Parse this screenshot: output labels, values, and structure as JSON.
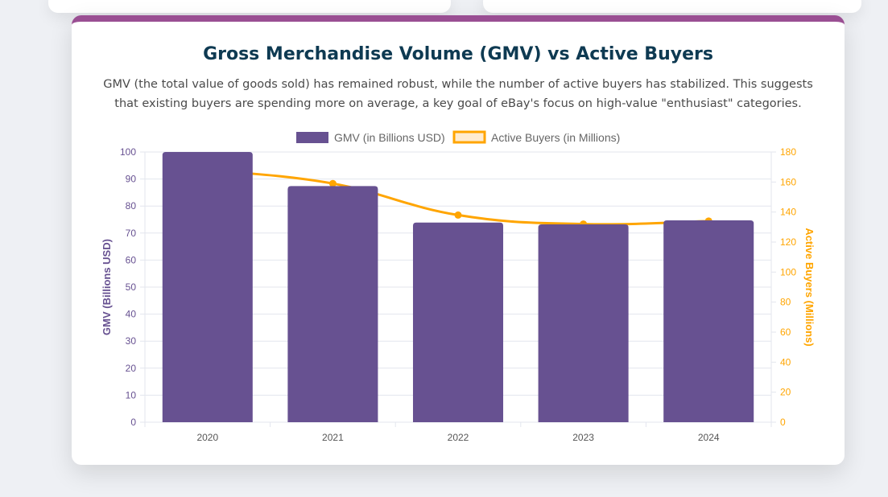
{
  "title": "Gross Merchandise Volume (GMV) vs Active Buyers",
  "subtitle": "GMV (the total value of goods sold) has remained robust, while the number of active buyers has stabilized. This suggests that existing buyers are spending more on average, a key goal of eBay's focus on high-value \"enthusiast\" categories.",
  "colors": {
    "gmv": "#675191",
    "buyers": "#ffa500",
    "accent": "#9a4f93",
    "title": "#0e3a52"
  },
  "chart_data": {
    "type": "bar",
    "categories": [
      "2020",
      "2021",
      "2022",
      "2023",
      "2024"
    ],
    "series": [
      {
        "name": "GMV (in Billions USD)",
        "type": "bar",
        "axis": "left",
        "values": [
          100,
          87.4,
          73.9,
          73.2,
          74.7
        ]
      },
      {
        "name": "Active Buyers (in Millions)",
        "type": "line",
        "axis": "right",
        "values": [
          168,
          159,
          138,
          132,
          134
        ]
      }
    ],
    "y_left": {
      "label": "GMV (Billions USD)",
      "range": [
        0,
        100
      ],
      "ticks": [
        0,
        10,
        20,
        30,
        40,
        50,
        60,
        70,
        80,
        90,
        100
      ]
    },
    "y_right": {
      "label": "Active Buyers (Millions)",
      "range": [
        0,
        180
      ],
      "ticks": [
        0,
        20,
        40,
        60,
        80,
        100,
        120,
        140,
        160,
        180
      ]
    },
    "legend": "top",
    "grid": true
  }
}
